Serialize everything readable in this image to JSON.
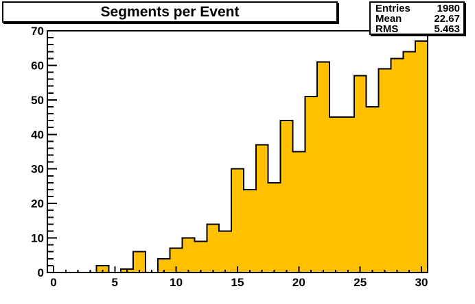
{
  "title": "Segments per Event",
  "stats_box": {
    "rows": [
      {
        "label": "Entries",
        "value": "1980"
      },
      {
        "label": "Mean",
        "value": "22.67"
      },
      {
        "label": "RMS",
        "value": "5.463"
      }
    ]
  },
  "chart_data": {
    "type": "bar",
    "subtype": "histogram-step-filled",
    "title": "Segments per Event",
    "xlabel": "",
    "ylabel": "",
    "bin_centers": [
      0,
      1,
      2,
      3,
      4,
      5,
      6,
      7,
      8,
      9,
      10,
      11,
      12,
      13,
      14,
      15,
      16,
      17,
      18,
      19,
      20,
      21,
      22,
      23,
      24,
      25,
      26,
      27,
      28,
      29,
      30
    ],
    "values": [
      0,
      0,
      0,
      0,
      2,
      0,
      1,
      6,
      0,
      4,
      7,
      10,
      9,
      14,
      12,
      30,
      24,
      37,
      26,
      44,
      35,
      51,
      61,
      45,
      45,
      57,
      48,
      59,
      62,
      64,
      67
    ],
    "bin_width": 1,
    "xlim": [
      -0.5,
      30.5
    ],
    "ylim": [
      0,
      70
    ],
    "x_major_ticks": [
      0,
      5,
      10,
      15,
      20,
      25,
      30
    ],
    "y_major_ticks": [
      0,
      10,
      20,
      30,
      40,
      50,
      60,
      70
    ],
    "x_minor_step": 1,
    "y_minor_step": 2,
    "grid": false,
    "legend": "none",
    "stats": {
      "entries": 1980,
      "mean": 22.67,
      "rms": 5.463
    },
    "fill_color": "#FFC000",
    "line_color": "#000000",
    "background_color": "#FFFFFF"
  }
}
